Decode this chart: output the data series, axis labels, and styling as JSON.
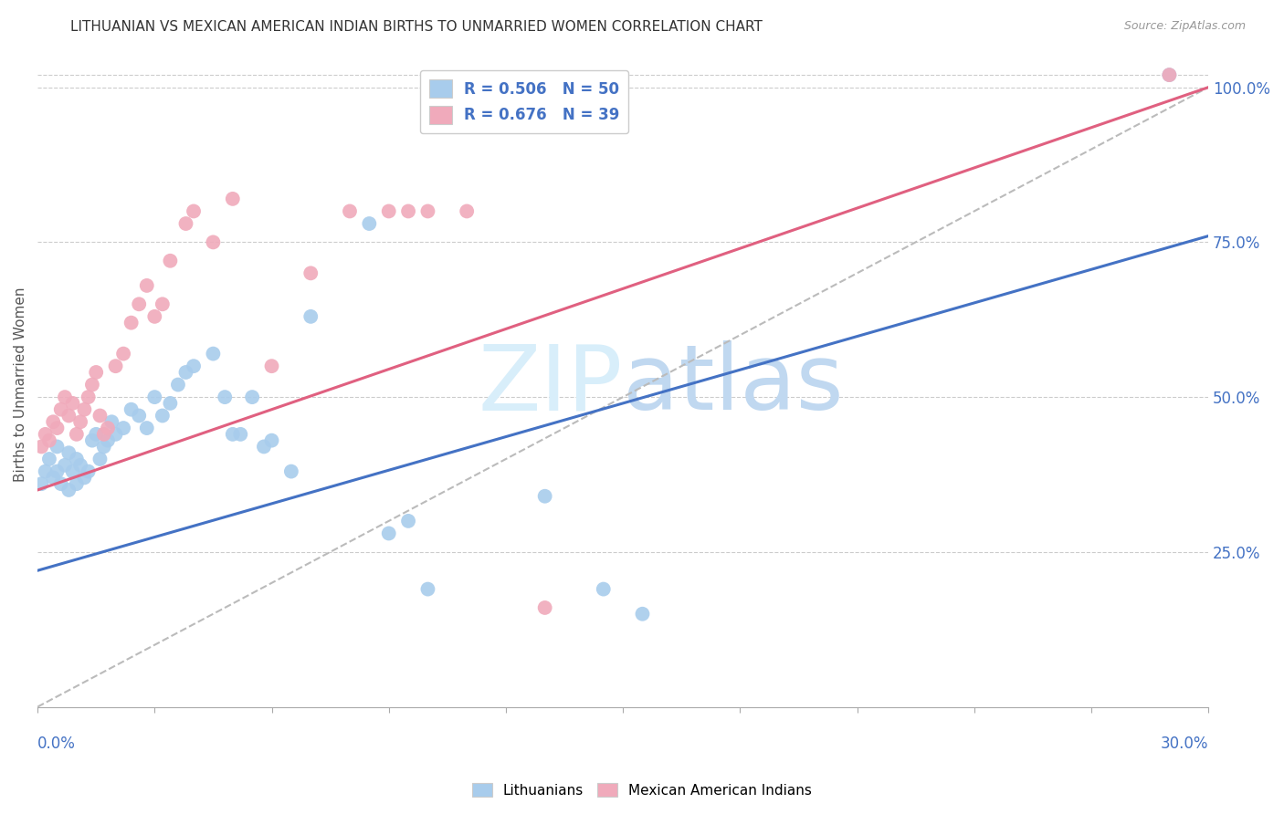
{
  "title": "LITHUANIAN VS MEXICAN AMERICAN INDIAN BIRTHS TO UNMARRIED WOMEN CORRELATION CHART",
  "source": "Source: ZipAtlas.com",
  "ylabel": "Births to Unmarried Women",
  "xlim": [
    0.0,
    0.3
  ],
  "ylim": [
    0.0,
    1.04
  ],
  "yticks_right": [
    0.25,
    0.5,
    0.75,
    1.0
  ],
  "ytick_labels_right": [
    "25.0%",
    "50.0%",
    "75.0%",
    "100.0%"
  ],
  "legend_blue_r": "R = 0.506",
  "legend_blue_n": "N = 50",
  "legend_pink_r": "R = 0.676",
  "legend_pink_n": "N = 39",
  "blue_color": "#A8CCEC",
  "pink_color": "#F0AABB",
  "blue_line_color": "#4472C4",
  "pink_line_color": "#E06080",
  "ref_line_color": "#BBBBBB",
  "watermark_color": "#D8EEFA",
  "blue_line_x0": 0.0,
  "blue_line_y0": 0.22,
  "blue_line_x1": 0.3,
  "blue_line_y1": 0.76,
  "pink_line_x0": 0.0,
  "pink_line_y0": 0.35,
  "pink_line_x1": 0.3,
  "pink_line_y1": 1.0,
  "blue_scatter_x": [
    0.001,
    0.002,
    0.003,
    0.004,
    0.005,
    0.005,
    0.006,
    0.007,
    0.008,
    0.008,
    0.009,
    0.01,
    0.01,
    0.011,
    0.012,
    0.013,
    0.014,
    0.015,
    0.016,
    0.017,
    0.018,
    0.019,
    0.02,
    0.022,
    0.024,
    0.026,
    0.028,
    0.03,
    0.032,
    0.034,
    0.036,
    0.038,
    0.04,
    0.045,
    0.048,
    0.05,
    0.052,
    0.055,
    0.058,
    0.06,
    0.065,
    0.07,
    0.085,
    0.09,
    0.095,
    0.1,
    0.13,
    0.145,
    0.155,
    0.29
  ],
  "blue_scatter_y": [
    0.36,
    0.38,
    0.4,
    0.37,
    0.38,
    0.42,
    0.36,
    0.39,
    0.35,
    0.41,
    0.38,
    0.36,
    0.4,
    0.39,
    0.37,
    0.38,
    0.43,
    0.44,
    0.4,
    0.42,
    0.43,
    0.46,
    0.44,
    0.45,
    0.48,
    0.47,
    0.45,
    0.5,
    0.47,
    0.49,
    0.52,
    0.54,
    0.55,
    0.57,
    0.5,
    0.44,
    0.44,
    0.5,
    0.42,
    0.43,
    0.38,
    0.63,
    0.78,
    0.28,
    0.3,
    0.19,
    0.34,
    0.19,
    0.15,
    1.02
  ],
  "pink_scatter_x": [
    0.001,
    0.002,
    0.003,
    0.004,
    0.005,
    0.006,
    0.007,
    0.008,
    0.009,
    0.01,
    0.011,
    0.012,
    0.013,
    0.014,
    0.015,
    0.016,
    0.017,
    0.018,
    0.02,
    0.022,
    0.024,
    0.026,
    0.028,
    0.03,
    0.032,
    0.034,
    0.038,
    0.04,
    0.045,
    0.05,
    0.06,
    0.07,
    0.08,
    0.09,
    0.095,
    0.1,
    0.11,
    0.13,
    0.29
  ],
  "pink_scatter_y": [
    0.42,
    0.44,
    0.43,
    0.46,
    0.45,
    0.48,
    0.5,
    0.47,
    0.49,
    0.44,
    0.46,
    0.48,
    0.5,
    0.52,
    0.54,
    0.47,
    0.44,
    0.45,
    0.55,
    0.57,
    0.62,
    0.65,
    0.68,
    0.63,
    0.65,
    0.72,
    0.78,
    0.8,
    0.75,
    0.82,
    0.55,
    0.7,
    0.8,
    0.8,
    0.8,
    0.8,
    0.8,
    0.16,
    1.02
  ]
}
